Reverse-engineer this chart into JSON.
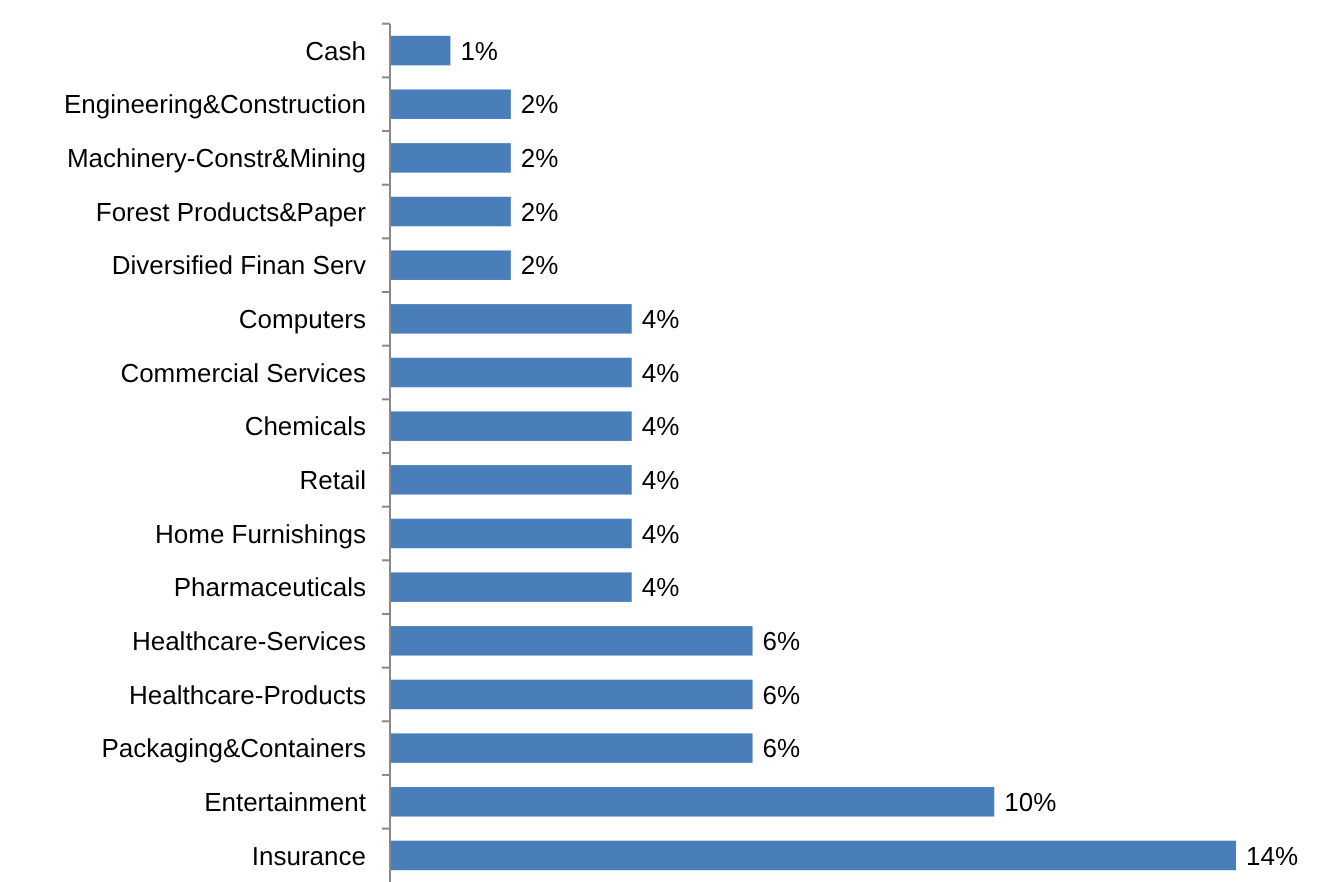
{
  "chart_data": {
    "type": "bar",
    "orientation": "horizontal",
    "categories": [
      "Cash",
      "Engineering&Construction",
      "Machinery-Constr&Mining",
      "Forest Products&Paper",
      "Diversified Finan Serv",
      "Computers",
      "Commercial Services",
      "Chemicals",
      "Retail",
      "Home Furnishings",
      "Pharmaceuticals",
      "Healthcare-Services",
      "Healthcare-Products",
      "Packaging&Containers",
      "Entertainment",
      "Insurance"
    ],
    "values": [
      1,
      2,
      2,
      2,
      2,
      4,
      4,
      4,
      4,
      4,
      4,
      6,
      6,
      6,
      10,
      14
    ],
    "value_labels": [
      "1%",
      "2%",
      "2%",
      "2%",
      "2%",
      "4%",
      "4%",
      "4%",
      "4%",
      "4%",
      "4%",
      "6%",
      "6%",
      "6%",
      "10%",
      "14%"
    ],
    "color": "#4a7ebb"
  }
}
